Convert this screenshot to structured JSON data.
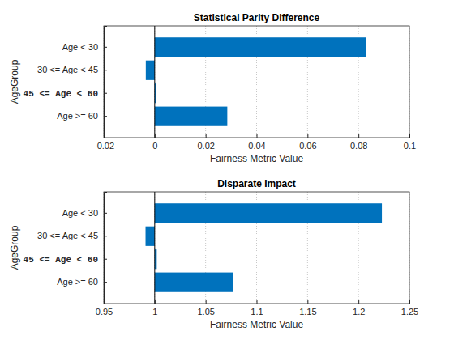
{
  "chart_data": [
    {
      "type": "bar",
      "orientation": "horizontal",
      "title": "Statistical Parity Difference",
      "x_label": "Fairness Metric Value",
      "y_label": "AgeGroup",
      "categories": [
        "Age < 30",
        "30 <= Age < 45",
        "45 <= Age < 60",
        "Age >= 60"
      ],
      "values": [
        0.083,
        -0.0035,
        0.0006,
        0.0285
      ],
      "baseline": 0,
      "reference_group": "45 <= Age < 60",
      "color": "#0072bd",
      "xlim": [
        -0.02,
        0.1
      ],
      "xticks": [
        -0.02,
        0,
        0.02,
        0.04,
        0.06,
        0.08,
        0.1
      ],
      "grid": true
    },
    {
      "type": "bar",
      "orientation": "horizontal",
      "title": "Disparate Impact",
      "x_label": "Fairness Metric Value",
      "y_label": "AgeGroup",
      "categories": [
        "Age < 30",
        "30 <= Age < 45",
        "45 <= Age < 60",
        "Age >= 60"
      ],
      "values": [
        1.223,
        0.991,
        1.002,
        1.077
      ],
      "baseline": 1,
      "reference_group": "45 <= Age < 60",
      "color": "#0072bd",
      "xlim": [
        0.95,
        1.25
      ],
      "xticks": [
        0.95,
        1,
        1.05,
        1.1,
        1.15,
        1.2,
        1.25
      ],
      "grid": true
    }
  ]
}
